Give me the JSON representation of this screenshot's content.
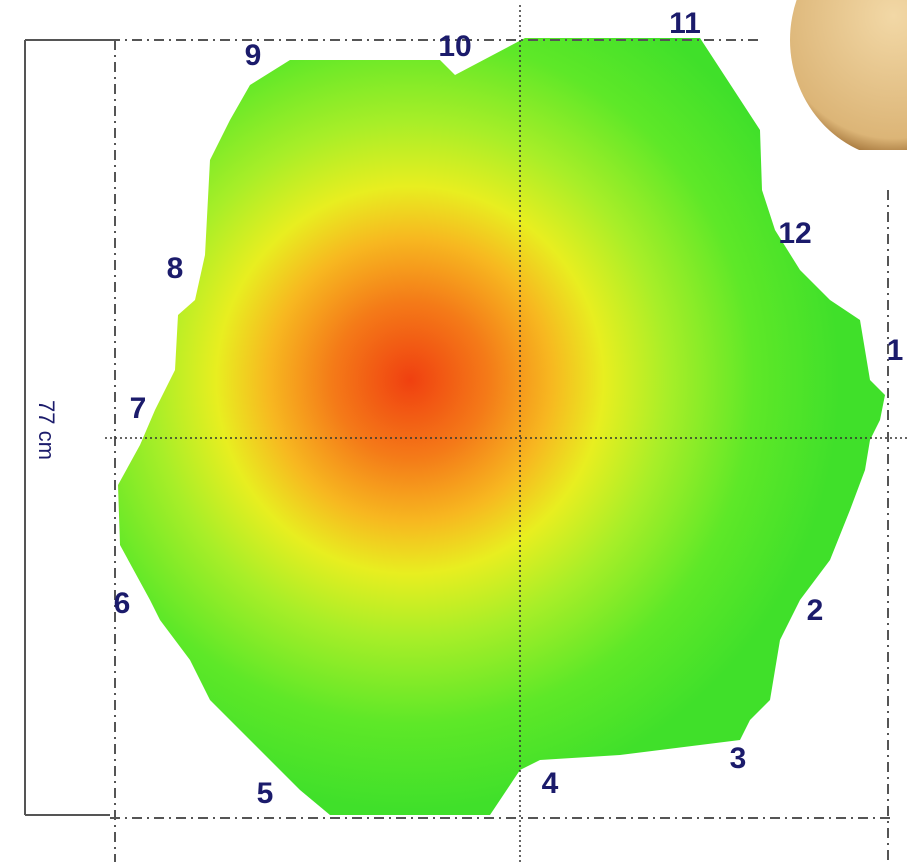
{
  "sensors": [
    "1",
    "2",
    "3",
    "4",
    "5",
    "6",
    "7",
    "8",
    "9",
    "10",
    "11",
    "12"
  ],
  "dimension": "77 cm"
}
